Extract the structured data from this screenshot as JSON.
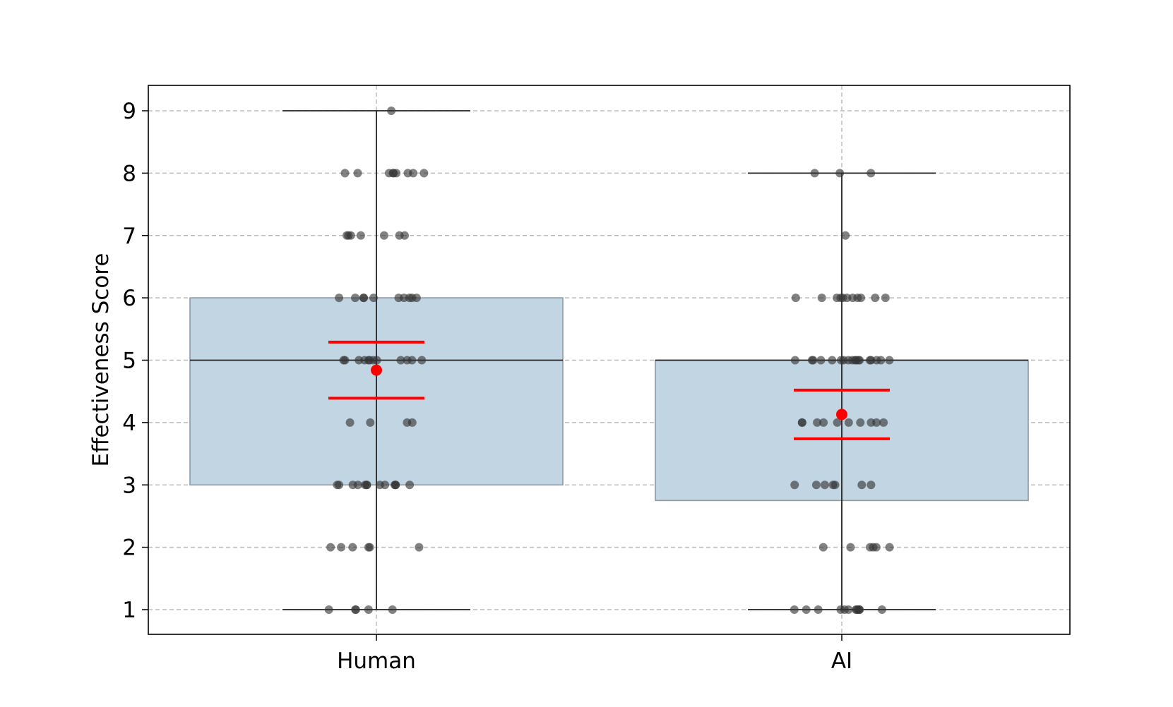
{
  "chart_data": {
    "type": "box",
    "ylabel": "Effectiveness Score",
    "xlabel": "",
    "ylim": [
      0.6,
      9.4
    ],
    "yticks": [
      1,
      2,
      3,
      4,
      5,
      6,
      7,
      8,
      9
    ],
    "grid": true,
    "colors": {
      "box_fill": "#c2d5e2",
      "box_edge": "#8a9aa6",
      "whisker": "#222222",
      "point": "#333333",
      "mean": "#ff0000",
      "grid": "#bbbbbb"
    },
    "categories": [
      "Human",
      "AI"
    ],
    "series": [
      {
        "category": "Human",
        "whisker_low": 1,
        "q1": 3,
        "median": 5,
        "q3": 6,
        "whisker_high": 9,
        "mean": 4.84,
        "ci_low": 4.39,
        "ci_high": 5.29,
        "points": [
          9,
          8,
          8,
          8,
          8,
          8,
          8,
          8,
          8,
          8,
          7,
          7,
          7,
          7,
          7,
          7,
          7,
          6,
          6,
          6,
          6,
          6,
          6,
          6,
          6,
          6,
          6,
          5,
          5,
          5,
          5,
          5,
          5,
          5,
          5,
          5,
          5,
          5,
          5,
          4,
          4,
          4,
          4,
          3,
          3,
          3,
          3,
          3,
          3,
          3,
          3,
          3,
          3,
          3,
          3,
          3,
          2,
          2,
          2,
          2,
          2,
          2,
          1,
          1,
          1,
          1,
          1
        ]
      },
      {
        "category": "AI",
        "whisker_low": 1,
        "q1": 2.75,
        "median": 5,
        "q3": 5,
        "whisker_high": 8,
        "mean": 4.13,
        "ci_low": 3.74,
        "ci_high": 4.52,
        "points": [
          8,
          8,
          8,
          7,
          6,
          6,
          6,
          6,
          6,
          6,
          6,
          6,
          6,
          6,
          6,
          5,
          5,
          5,
          5,
          5,
          5,
          5,
          5,
          5,
          5,
          5,
          5,
          5,
          5,
          5,
          5,
          5,
          5,
          4,
          4,
          4,
          4,
          4,
          4,
          4,
          4,
          4,
          4,
          3,
          3,
          3,
          3,
          3,
          3,
          3,
          2,
          2,
          2,
          2,
          2,
          2,
          1,
          1,
          1,
          1,
          1,
          1,
          1,
          1,
          1,
          1,
          1,
          1
        ]
      }
    ]
  }
}
